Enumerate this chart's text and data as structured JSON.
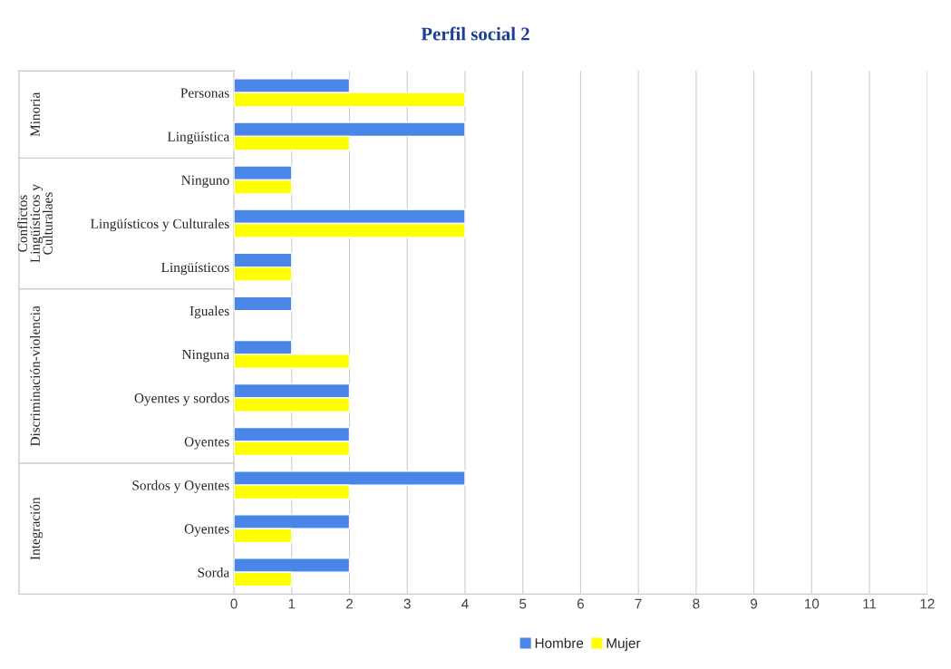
{
  "chart_data": {
    "type": "bar",
    "orientation": "horizontal",
    "title": "Perfil social 2",
    "categories": [
      "Personas",
      "Lingüística",
      "Ninguno",
      "Lingüísticos y Culturales",
      "Lingüísticos",
      "Iguales",
      "Ninguna",
      "Oyentes y sordos",
      "Oyentes",
      "Sordos y Oyentes",
      "Oyentes",
      "Sorda"
    ],
    "series": [
      {
        "name": "Hombre",
        "color": "#4a86e8",
        "values": [
          2,
          4,
          1,
          4,
          1,
          1,
          1,
          2,
          2,
          4,
          2,
          2
        ]
      },
      {
        "name": "Mujer",
        "color": "#ffff00",
        "values": [
          4,
          2,
          1,
          4,
          1,
          null,
          2,
          2,
          2,
          2,
          1,
          1
        ]
      }
    ],
    "xlim": [
      0,
      12
    ],
    "xticks": [
      0,
      1,
      2,
      3,
      4,
      5,
      6,
      7,
      8,
      9,
      10,
      11,
      12
    ],
    "grid": "x",
    "legend": "bottom",
    "annotations": [
      "Minoria",
      "Conflictos Lingüísticos y Culturalaes",
      "Discriminación-violencia",
      "Integración"
    ]
  }
}
